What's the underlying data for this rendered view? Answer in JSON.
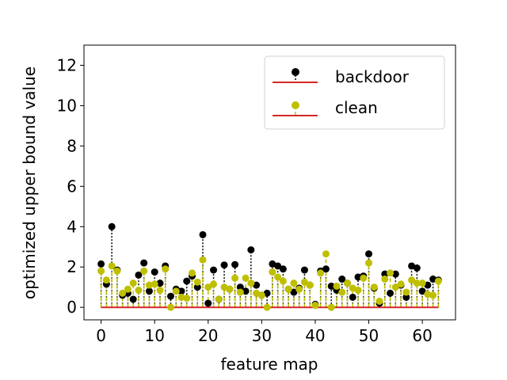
{
  "chart_data": {
    "type": "scatter",
    "subtype": "stem",
    "xlabel": "feature map",
    "ylabel": "optimized upper bound value",
    "xlim": [
      -3.2,
      66.2
    ],
    "ylim": [
      -0.62,
      13.0
    ],
    "xticks": [
      0,
      10,
      20,
      30,
      40,
      50,
      60
    ],
    "yticks": [
      0,
      2,
      4,
      6,
      8,
      10,
      12
    ],
    "grid": false,
    "legend_position": "upper-right",
    "baseline_color": "#d62728",
    "x": [
      0,
      1,
      2,
      3,
      4,
      5,
      6,
      7,
      8,
      9,
      10,
      11,
      12,
      13,
      14,
      15,
      16,
      17,
      18,
      19,
      20,
      21,
      22,
      23,
      24,
      25,
      26,
      27,
      28,
      29,
      30,
      31,
      32,
      33,
      34,
      35,
      36,
      37,
      38,
      39,
      40,
      41,
      42,
      43,
      44,
      45,
      46,
      47,
      48,
      49,
      50,
      51,
      52,
      53,
      54,
      55,
      56,
      57,
      58,
      59,
      60,
      61,
      62,
      63
    ],
    "series": [
      {
        "name": "backdoor",
        "color": "#000000",
        "linestyle": "dotted",
        "values": [
          2.15,
          1.15,
          4.0,
          1.85,
          0.6,
          0.7,
          0.4,
          1.6,
          2.2,
          0.8,
          1.75,
          1.2,
          2.05,
          0.55,
          0.9,
          0.8,
          1.3,
          1.55,
          1.0,
          3.6,
          0.2,
          1.85,
          0.4,
          2.1,
          0.9,
          2.12,
          1.0,
          0.8,
          2.85,
          1.1,
          0.6,
          0.7,
          2.15,
          2.05,
          1.9,
          0.9,
          0.75,
          0.95,
          1.85,
          1.1,
          0.15,
          1.8,
          1.9,
          1.05,
          0.85,
          1.4,
          1.2,
          0.5,
          1.5,
          1.55,
          2.65,
          0.95,
          0.2,
          1.65,
          0.7,
          1.65,
          1.1,
          0.5,
          2.05,
          1.95,
          0.8,
          1.1,
          1.4,
          1.35
        ]
      },
      {
        "name": "clean",
        "color": "#bfbf00",
        "linestyle": "dashed",
        "values": [
          1.8,
          1.35,
          2.05,
          1.8,
          0.7,
          0.9,
          1.2,
          0.85,
          1.8,
          1.1,
          1.15,
          0.85,
          1.9,
          0.0,
          0.8,
          0.5,
          0.45,
          1.7,
          1.25,
          2.35,
          1.0,
          1.15,
          0.4,
          1.0,
          0.9,
          1.45,
          0.75,
          1.45,
          1.2,
          0.7,
          0.6,
          0.0,
          1.75,
          1.5,
          1.3,
          0.9,
          1.2,
          0.9,
          1.25,
          1.1,
          0.1,
          1.7,
          2.65,
          0.0,
          1.05,
          0.75,
          1.2,
          0.95,
          0.85,
          1.45,
          2.2,
          1.0,
          0.3,
          1.4,
          1.7,
          1.0,
          1.15,
          0.75,
          1.35,
          1.2,
          1.2,
          0.65,
          0.6,
          1.3
        ]
      }
    ]
  }
}
